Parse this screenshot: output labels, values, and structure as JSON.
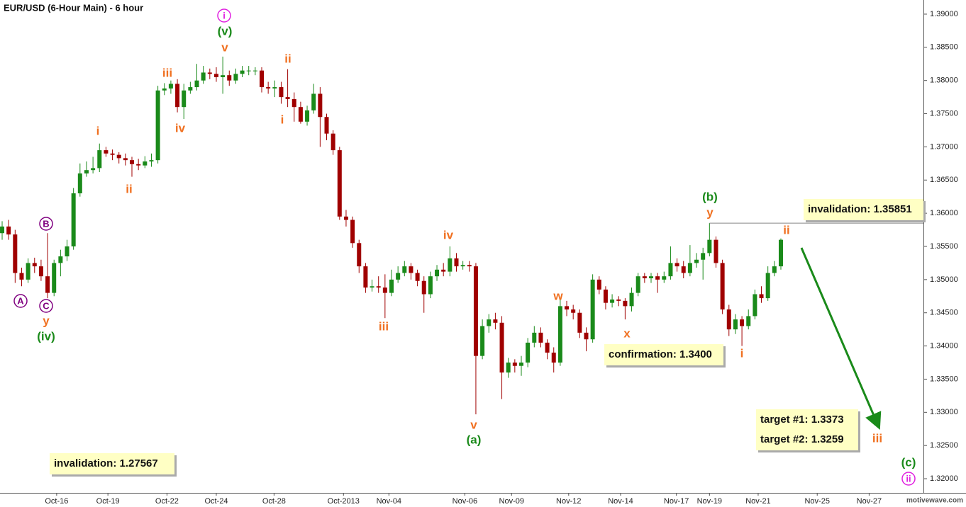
{
  "chart_data": {
    "type": "candlestick",
    "title": "EUR/USD (6-Hour Main) - 6 hour",
    "watermark": "motivewave.com",
    "up_color": "#1a8a1a",
    "down_color": "#a00000",
    "xlim": [
      -0.33,
      141.97
    ],
    "xticks": [
      {
        "value": 8.4,
        "label": "Oct-16"
      },
      {
        "value": 16.3,
        "label": "Oct-19"
      },
      {
        "value": 25.4,
        "label": "Oct-22"
      },
      {
        "value": 33,
        "label": "Oct-24"
      },
      {
        "value": 41.9,
        "label": "Oct-28"
      },
      {
        "value": 52.6,
        "label": "Oct-2013"
      },
      {
        "value": 59.6,
        "label": "Nov-04"
      },
      {
        "value": 71.3,
        "label": "Nov-06"
      },
      {
        "value": 78.5,
        "label": "Nov-09"
      },
      {
        "value": 87.3,
        "label": "Nov-12"
      },
      {
        "value": 95.3,
        "label": "Nov-14"
      },
      {
        "value": 103.9,
        "label": "Nov-17"
      },
      {
        "value": 109,
        "label": "Nov-19"
      },
      {
        "value": 116.5,
        "label": "Nov-21"
      },
      {
        "value": 125.6,
        "label": "Nov-25"
      },
      {
        "value": 133.6,
        "label": "Nov-27"
      }
    ],
    "ylim": [
      1.31851,
      1.39213
    ],
    "yticks": [
      {
        "value": 1.32,
        "label": "1.32000"
      },
      {
        "value": 1.325,
        "label": "1.32500"
      },
      {
        "value": 1.33,
        "label": "1.33000"
      },
      {
        "value": 1.335,
        "label": "1.33500"
      },
      {
        "value": 1.34,
        "label": "1.34000"
      },
      {
        "value": 1.345,
        "label": "1.34500"
      },
      {
        "value": 1.35,
        "label": "1.35000"
      },
      {
        "value": 1.355,
        "label": "1.35500"
      },
      {
        "value": 1.36,
        "label": "1.36000"
      },
      {
        "value": 1.365,
        "label": "1.36500"
      },
      {
        "value": 1.37,
        "label": "1.37000"
      },
      {
        "value": 1.375,
        "label": "1.37500"
      },
      {
        "value": 1.38,
        "label": "1.38000"
      },
      {
        "value": 1.385,
        "label": "1.38500"
      },
      {
        "value": 1.39,
        "label": "1.39000"
      }
    ],
    "open": [
      1.357,
      1.358,
      1.3568,
      1.351,
      1.35,
      1.3525,
      1.352,
      1.3505,
      1.348,
      1.3525,
      1.3535,
      1.355,
      1.363,
      1.366,
      1.3665,
      1.3668,
      1.3695,
      1.369,
      1.3688,
      1.3683,
      1.368,
      1.3674,
      1.3672,
      1.3678,
      1.368,
      1.3785,
      1.3788,
      1.3795,
      1.376,
      1.3785,
      1.379,
      1.38,
      1.3812,
      1.381,
      1.3805,
      1.3808,
      1.38,
      1.381,
      1.3815,
      1.3815,
      1.3815,
      1.379,
      1.3788,
      1.379,
      1.3775,
      1.3772,
      1.376,
      1.3738,
      1.3755,
      1.378,
      1.3745,
      1.372,
      1.3695,
      1.3595,
      1.359,
      1.3555,
      1.352,
      1.3488,
      1.349,
      1.3488,
      1.348,
      1.35,
      1.351,
      1.352,
      1.351,
      1.3498,
      1.3478,
      1.3505,
      1.3515,
      1.3512,
      1.3532,
      1.352,
      1.3522,
      1.352,
      1.3385,
      1.343,
      1.344,
      1.3435,
      1.336,
      1.3375,
      1.337,
      1.3375,
      1.3405,
      1.342,
      1.3405,
      1.339,
      1.3375,
      1.346,
      1.3455,
      1.345,
      1.342,
      1.341,
      1.35,
      1.3485,
      1.3465,
      1.347,
      1.3468,
      1.346,
      1.348,
      1.3505,
      1.3502,
      1.3505,
      1.35,
      1.3505,
      1.3525,
      1.352,
      1.351,
      1.3525,
      1.353,
      1.354,
      1.356,
      1.3525,
      1.3455,
      1.3425,
      1.344,
      1.343,
      1.3445,
      1.3478,
      1.3472,
      1.351,
      1.352
    ],
    "high": [
      1.3588,
      1.359,
      1.3575,
      1.3518,
      1.3532,
      1.3533,
      1.353,
      1.357,
      1.353,
      1.3545,
      1.356,
      1.3638,
      1.3675,
      1.3678,
      1.3685,
      1.3705,
      1.37,
      1.3696,
      1.3692,
      1.369,
      1.3685,
      1.3682,
      1.3686,
      1.369,
      1.3792,
      1.3796,
      1.38,
      1.3802,
      1.3795,
      1.3798,
      1.3825,
      1.3822,
      1.3818,
      1.382,
      1.3836,
      1.3815,
      1.3818,
      1.3822,
      1.3822,
      1.382,
      1.382,
      1.3798,
      1.38,
      1.3798,
      1.3817,
      1.3782,
      1.3768,
      1.3762,
      1.3795,
      1.379,
      1.375,
      1.3725,
      1.37,
      1.3605,
      1.3595,
      1.356,
      1.3525,
      1.35,
      1.3505,
      1.3508,
      1.3515,
      1.352,
      1.3528,
      1.3525,
      1.3515,
      1.3505,
      1.3512,
      1.3522,
      1.3525,
      1.355,
      1.354,
      1.3528,
      1.3528,
      1.3525,
      1.344,
      1.3448,
      1.345,
      1.3445,
      1.3382,
      1.338,
      1.3385,
      1.3412,
      1.343,
      1.3428,
      1.341,
      1.3398,
      1.347,
      1.3468,
      1.3462,
      1.3455,
      1.3428,
      1.3508,
      1.3505,
      1.349,
      1.3478,
      1.3475,
      1.3472,
      1.3488,
      1.351,
      1.351,
      1.351,
      1.351,
      1.3512,
      1.355,
      1.3532,
      1.3528,
      1.3552,
      1.354,
      1.3548,
      1.35851,
      1.3565,
      1.353,
      1.3462,
      1.3448,
      1.3445,
      1.3455,
      1.3485,
      1.349,
      1.352,
      1.3528,
      1.3562
    ],
    "low": [
      1.356,
      1.356,
      1.3495,
      1.349,
      1.3495,
      1.351,
      1.3498,
      1.3472,
      1.3475,
      1.3505,
      1.3528,
      1.3545,
      1.3625,
      1.3655,
      1.366,
      1.3662,
      1.3685,
      1.368,
      1.3675,
      1.3672,
      1.3655,
      1.3665,
      1.3668,
      1.367,
      1.3675,
      1.3778,
      1.378,
      1.3752,
      1.3742,
      1.378,
      1.3785,
      1.3795,
      1.3802,
      1.3798,
      1.378,
      1.3792,
      1.3795,
      1.3805,
      1.3808,
      1.3808,
      1.3782,
      1.378,
      1.3775,
      1.3765,
      1.376,
      1.3738,
      1.3735,
      1.3732,
      1.375,
      1.37,
      1.371,
      1.3688,
      1.359,
      1.358,
      1.3548,
      1.351,
      1.348,
      1.3482,
      1.348,
      1.3442,
      1.3475,
      1.3495,
      1.3505,
      1.35,
      1.349,
      1.345,
      1.3472,
      1.3498,
      1.3505,
      1.3505,
      1.3512,
      1.3515,
      1.3512,
      1.3297,
      1.338,
      1.342,
      1.3425,
      1.332,
      1.3352,
      1.336,
      1.3355,
      1.3368,
      1.3398,
      1.3398,
      1.338,
      1.336,
      1.337,
      1.3445,
      1.344,
      1.3412,
      1.3392,
      1.3405,
      1.3478,
      1.3455,
      1.3458,
      1.346,
      1.344,
      1.3452,
      1.3475,
      1.3495,
      1.3495,
      1.348,
      1.3495,
      1.35,
      1.3512,
      1.3502,
      1.3505,
      1.3518,
      1.35,
      1.3535,
      1.3518,
      1.3448,
      1.3415,
      1.3418,
      1.34,
      1.3425,
      1.344,
      1.3465,
      1.3468,
      1.3505,
      1.3515
    ],
    "close": [
      1.358,
      1.3568,
      1.351,
      1.35,
      1.3525,
      1.352,
      1.3505,
      1.348,
      1.3525,
      1.3535,
      1.355,
      1.363,
      1.366,
      1.3665,
      1.3668,
      1.3695,
      1.369,
      1.3688,
      1.3683,
      1.368,
      1.3674,
      1.3672,
      1.3678,
      1.368,
      1.3785,
      1.3788,
      1.3795,
      1.376,
      1.3785,
      1.379,
      1.38,
      1.3812,
      1.381,
      1.3805,
      1.3808,
      1.38,
      1.381,
      1.3815,
      1.3815,
      1.3815,
      1.379,
      1.3788,
      1.379,
      1.3775,
      1.3772,
      1.376,
      1.3738,
      1.3755,
      1.378,
      1.3745,
      1.372,
      1.3695,
      1.3595,
      1.359,
      1.3555,
      1.352,
      1.3488,
      1.349,
      1.3488,
      1.348,
      1.35,
      1.351,
      1.352,
      1.351,
      1.3498,
      1.3478,
      1.3505,
      1.3515,
      1.3512,
      1.3532,
      1.352,
      1.3522,
      1.352,
      1.3385,
      1.343,
      1.344,
      1.3435,
      1.336,
      1.3375,
      1.337,
      1.3375,
      1.3405,
      1.342,
      1.3405,
      1.339,
      1.3375,
      1.346,
      1.3455,
      1.345,
      1.342,
      1.341,
      1.35,
      1.3485,
      1.3465,
      1.347,
      1.3468,
      1.346,
      1.348,
      1.3505,
      1.3502,
      1.3505,
      1.35,
      1.3505,
      1.3525,
      1.352,
      1.351,
      1.3525,
      1.353,
      1.354,
      1.356,
      1.3525,
      1.3455,
      1.3425,
      1.344,
      1.343,
      1.3445,
      1.3478,
      1.3472,
      1.351,
      1.352,
      1.356
    ],
    "annotations": [
      {
        "text": "i",
        "color": "#e020e0",
        "circled": true
      },
      {
        "text": "(v)",
        "color": "#1a8a1a"
      },
      {
        "text": "v",
        "color": "#f07020"
      },
      {
        "text": "iii",
        "color": "#f07020"
      },
      {
        "text": "iv",
        "color": "#f07020"
      },
      {
        "text": "i",
        "color": "#f07020"
      },
      {
        "text": "ii",
        "color": "#f07020"
      },
      {
        "text": "ii",
        "color": "#f07020"
      },
      {
        "text": "i",
        "color": "#f07020"
      },
      {
        "text": "B",
        "color": "#800080",
        "circled": true
      },
      {
        "text": "A",
        "color": "#800080",
        "circled": true
      },
      {
        "text": "C",
        "color": "#800080",
        "circled": true
      },
      {
        "text": "y",
        "color": "#f07020"
      },
      {
        "text": "(iv)",
        "color": "#1a8a1a"
      },
      {
        "text": "iii",
        "color": "#f07020"
      },
      {
        "text": "iv",
        "color": "#f07020"
      },
      {
        "text": "v",
        "color": "#f07020"
      },
      {
        "text": "(a)",
        "color": "#1a8a1a"
      },
      {
        "text": "w",
        "color": "#f07020"
      },
      {
        "text": "x",
        "color": "#f07020"
      },
      {
        "text": "(b)",
        "color": "#1a8a1a"
      },
      {
        "text": "y",
        "color": "#f07020"
      },
      {
        "text": "ii",
        "color": "#f07020"
      },
      {
        "text": "i",
        "color": "#f07020"
      },
      {
        "text": "iii",
        "color": "#f07020"
      },
      {
        "text": "(c)",
        "color": "#1a8a1a"
      },
      {
        "text": "ii",
        "color": "#e020e0",
        "circled": true
      }
    ],
    "boxes": [
      {
        "lines": [
          "invalidation:  1.35851"
        ]
      },
      {
        "lines": [
          "confirmation:  1.3400"
        ]
      },
      {
        "lines": [
          "target #1:  1.3373",
          "target #2:  1.3259"
        ]
      },
      {
        "lines": [
          "invalidation:  1.27567"
        ]
      }
    ]
  }
}
